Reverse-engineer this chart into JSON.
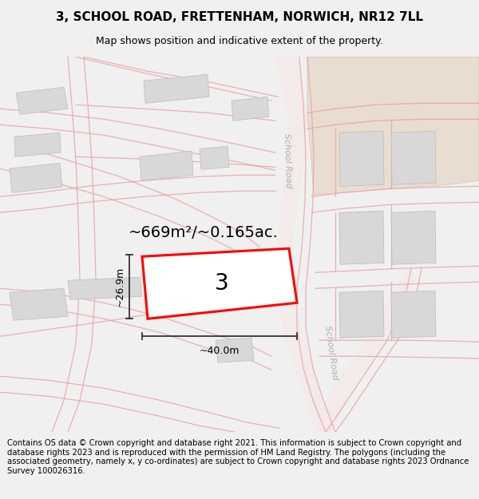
{
  "title": "3, SCHOOL ROAD, FRETTENHAM, NORWICH, NR12 7LL",
  "subtitle": "Map shows position and indicative extent of the property.",
  "footer": "Contains OS data © Crown copyright and database right 2021. This information is subject to Crown copyright and database rights 2023 and is reproduced with the permission of HM Land Registry. The polygons (including the associated geometry, namely x, y co-ordinates) are subject to Crown copyright and database rights 2023 Ordnance Survey 100026316.",
  "area_text": "~669m²/~0.165ac.",
  "width_label": "~40.0m",
  "height_label": "~26.9m",
  "property_number": "3",
  "bg_color": "#f0f0f0",
  "map_bg": "#ffffff",
  "road_line_color": "#e8a0a0",
  "road_fill_color": "#f5e8e8",
  "building_fill": "#d8d8d8",
  "building_stroke": "#bbbbbb",
  "plot_stroke": "#ff0000",
  "plot_fill": "#ffffff",
  "beige_fill": "#e8ddd0",
  "beige_stroke": "#d0c4b0",
  "school_road_label_color": "#b0b0b0",
  "dim_line_color": "#555555",
  "title_fontsize": 11,
  "subtitle_fontsize": 9,
  "footer_fontsize": 7.2,
  "area_fontsize": 14,
  "dim_fontsize": 9,
  "number_fontsize": 20
}
